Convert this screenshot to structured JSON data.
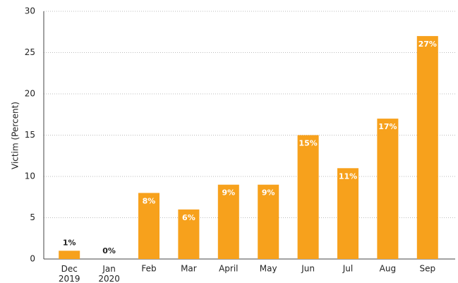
{
  "chart_data": {
    "type": "bar",
    "y_label": "Victim (Percent)",
    "categories": [
      "Dec\n2019",
      "Jan\n2020",
      "Feb",
      "Mar",
      "April",
      "May",
      "Jun",
      "Jul",
      "Aug",
      "Sep"
    ],
    "values": [
      1,
      0,
      8,
      6,
      9,
      9,
      15,
      11,
      17,
      27
    ],
    "value_labels": [
      "1%",
      "0%",
      "8%",
      "6%",
      "9%",
      "9%",
      "15%",
      "11%",
      "17%",
      "27%"
    ],
    "color": "#f7a11c",
    "ylim": [
      0,
      30
    ],
    "yticks": [
      0,
      5,
      10,
      15,
      20,
      25,
      30
    ],
    "grid": true
  }
}
